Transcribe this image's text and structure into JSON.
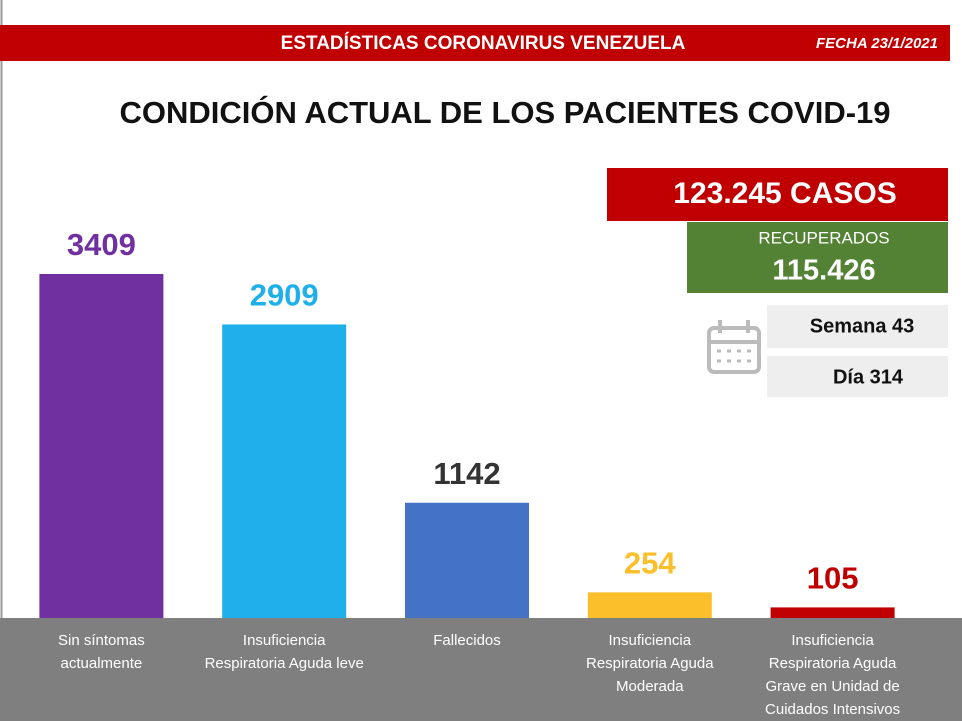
{
  "header": {
    "title": "ESTADÍSTICAS CORONAVIRUS VENEZUELA",
    "date": "FECHA 23/1/2021"
  },
  "summary": {
    "cases": "123.245 CASOS",
    "recovered_label": "RECUPERADOS",
    "recovered": "115.426",
    "week": "Semana 43",
    "day": "Día 314"
  },
  "chart_data": {
    "type": "bar",
    "title": "CONDICIÓN ACTUAL DE LOS PACIENTES COVID-19",
    "categories": [
      [
        "Sin síntomas",
        "actualmente"
      ],
      [
        "Insuficiencia",
        "Respiratoria Aguda leve"
      ],
      [
        "Fallecidos"
      ],
      [
        "Insuficiencia",
        "Respiratoria Aguda",
        "Moderada"
      ],
      [
        "Insuficiencia",
        "Respiratoria Aguda",
        "Grave en Unidad de",
        "Cuidados Intensivos"
      ]
    ],
    "values": [
      3409,
      2909,
      1142,
      254,
      105
    ],
    "colors": [
      "#7030a0",
      "#1fb0ec",
      "#4472c4",
      "#fbbf2c",
      "#c00000"
    ],
    "label_colors": [
      "#7030a0",
      "#1fb0ec",
      "#333333",
      "#fbbf2c",
      "#c00000"
    ]
  }
}
